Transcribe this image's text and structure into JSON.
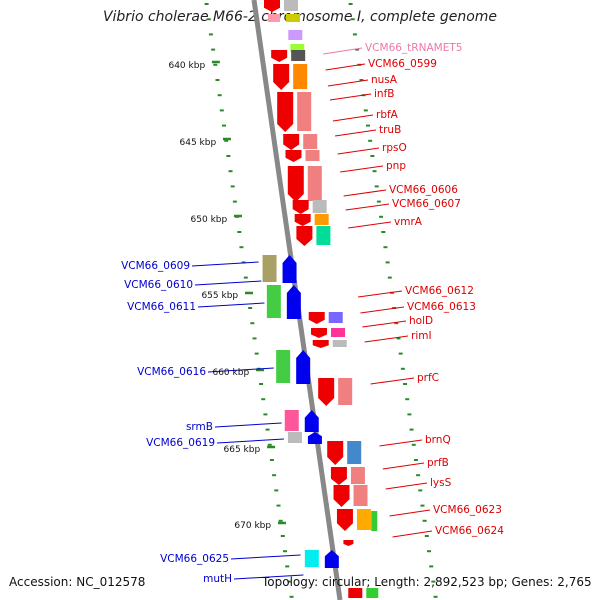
{
  "title": "Vibrio cholerae M66-2 chromosome I, complete genome",
  "footer": {
    "accession": "Accession: NC_012578",
    "topology": "Topology: circular; Length: 2,892,523 bp; Genes: 2,765"
  },
  "colors": {
    "forward_label": "#dd0000",
    "reverse_label": "#0000cc",
    "trna_label": "#ee77aa",
    "tick": "#2a8a2a",
    "backbone": "#888888"
  },
  "scale_labels": [
    "640 kbp",
    "645 kbp",
    "650 kbp",
    "655 kbp",
    "660 kbp",
    "665 kbp",
    "670 kbp"
  ],
  "right_labels": [
    {
      "text": "VCM66_tRNAMET5",
      "kind": "trna"
    },
    {
      "text": "VCM66_0599",
      "kind": "forward"
    },
    {
      "text": "nusA",
      "kind": "forward"
    },
    {
      "text": "infB",
      "kind": "forward"
    },
    {
      "text": "rbfA",
      "kind": "forward"
    },
    {
      "text": "truB",
      "kind": "forward"
    },
    {
      "text": "rpsO",
      "kind": "forward"
    },
    {
      "text": "pnp",
      "kind": "forward"
    },
    {
      "text": "VCM66_0606",
      "kind": "forward"
    },
    {
      "text": "VCM66_0607",
      "kind": "forward"
    },
    {
      "text": "vmrA",
      "kind": "forward"
    },
    {
      "text": "VCM66_0612",
      "kind": "forward"
    },
    {
      "text": "VCM66_0613",
      "kind": "forward"
    },
    {
      "text": "holD",
      "kind": "forward"
    },
    {
      "text": "rimI",
      "kind": "forward"
    },
    {
      "text": "prfC",
      "kind": "forward"
    },
    {
      "text": "brnQ",
      "kind": "forward"
    },
    {
      "text": "prfB",
      "kind": "forward"
    },
    {
      "text": "lysS",
      "kind": "forward"
    },
    {
      "text": "VCM66_0623",
      "kind": "forward"
    },
    {
      "text": "VCM66_0624",
      "kind": "forward"
    }
  ],
  "left_labels": [
    {
      "text": "VCM66_0609",
      "kind": "reverse"
    },
    {
      "text": "VCM66_0610",
      "kind": "reverse"
    },
    {
      "text": "VCM66_0611",
      "kind": "reverse"
    },
    {
      "text": "VCM66_0616",
      "kind": "reverse"
    },
    {
      "text": "srmB",
      "kind": "reverse"
    },
    {
      "text": "VCM66_0619",
      "kind": "reverse"
    },
    {
      "text": "VCM66_0625",
      "kind": "reverse"
    },
    {
      "text": "mutH",
      "kind": "reverse"
    }
  ]
}
